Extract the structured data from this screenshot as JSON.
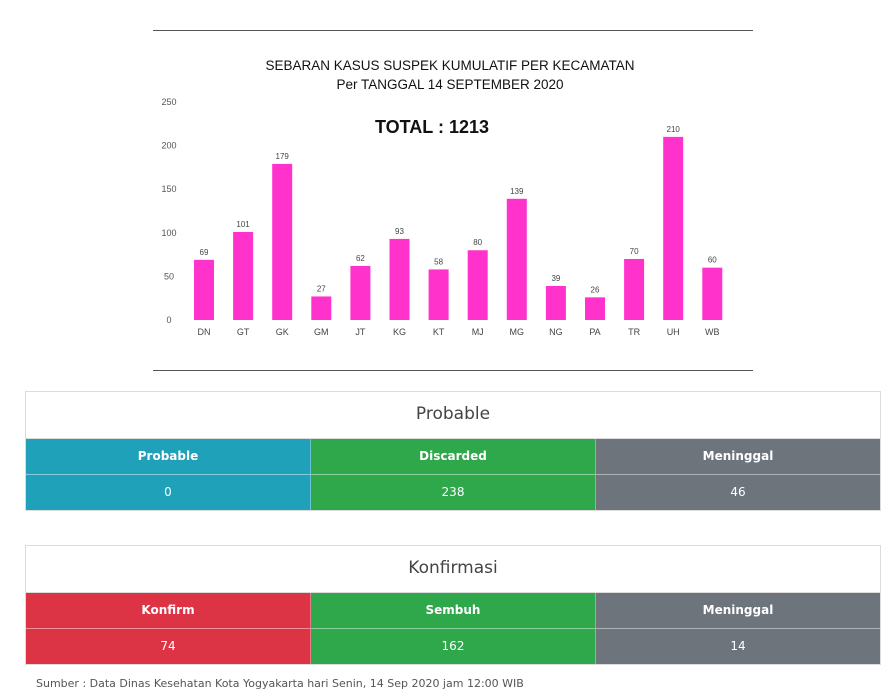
{
  "chart_data": {
    "type": "bar",
    "title": "SEBARAN KASUS SUSPEK KUMULATIF PER KECAMATAN",
    "subtitle": "Per TANGGAL 14 SEPTEMBER 2020",
    "annotation": "TOTAL : 1213",
    "categories": [
      "DN",
      "GT",
      "GK",
      "GM",
      "JT",
      "KG",
      "KT",
      "MJ",
      "MG",
      "NG",
      "PA",
      "TR",
      "UH",
      "WB"
    ],
    "values": [
      69,
      101,
      179,
      27,
      62,
      93,
      58,
      80,
      139,
      39,
      26,
      70,
      210,
      60
    ],
    "yticks": [
      0,
      50,
      100,
      150,
      200,
      250
    ],
    "ylim": [
      0,
      250
    ],
    "xlabel": "",
    "ylabel": "",
    "grid": false,
    "bar_color": "#ff33cc"
  },
  "colors": {
    "teal": "#20a1ba",
    "green": "#2ea84a",
    "gray": "#6d747c",
    "red": "#dc3444"
  },
  "probable": {
    "title": "Probable",
    "columns": [
      {
        "label": "Probable",
        "value": "0"
      },
      {
        "label": "Discarded",
        "value": "238"
      },
      {
        "label": "Meninggal",
        "value": "46"
      }
    ]
  },
  "konfirmasi": {
    "title": "Konfirmasi",
    "columns": [
      {
        "label": "Konfirm",
        "value": "74"
      },
      {
        "label": "Sembuh",
        "value": "162"
      },
      {
        "label": "Meninggal",
        "value": "14"
      }
    ]
  },
  "footer": {
    "source": "Sumber : Data Dinas Kesehatan Kota Yogyakarta hari Senin, 14 Sep 2020 jam 12:00 WIB"
  }
}
